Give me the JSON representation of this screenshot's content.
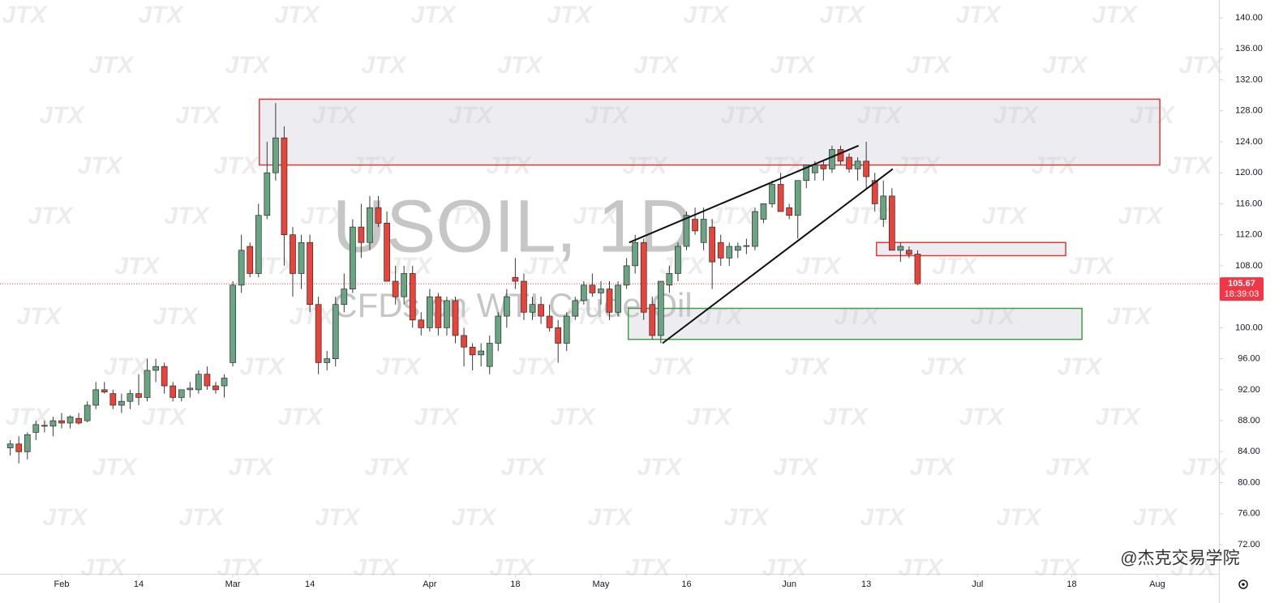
{
  "chart_data": {
    "type": "candlestick",
    "title": "USOIL, 1D",
    "subtitle": "CFDs on WTI Crude Oil",
    "watermark_text": "JTX",
    "credit": "@杰克交易学院",
    "up_color": "#6aa583",
    "down_color": "#e8443a",
    "candles": [
      [
        84.5,
        85.5,
        83.5,
        85
      ],
      [
        85,
        86,
        82.5,
        84
      ],
      [
        84,
        86.5,
        83,
        86.2
      ],
      [
        86.5,
        88,
        85.5,
        87.5
      ],
      [
        87.4,
        88,
        86.5,
        87.3
      ],
      [
        87.3,
        88.5,
        86,
        88
      ],
      [
        88,
        89,
        87,
        87.7
      ],
      [
        87.7,
        88.7,
        87,
        88.5
      ],
      [
        88.3,
        89,
        87.5,
        87.7
      ],
      [
        88,
        90.5,
        87.8,
        90
      ],
      [
        90,
        93,
        89.5,
        92
      ],
      [
        92,
        93,
        91.5,
        91.7
      ],
      [
        91.5,
        92,
        89.5,
        90
      ],
      [
        90,
        91.5,
        89,
        90.5
      ],
      [
        90.5,
        92,
        89.5,
        91.5
      ],
      [
        91.5,
        94,
        90,
        91
      ],
      [
        91,
        96,
        90.5,
        94.5
      ],
      [
        94.5,
        96,
        93,
        95
      ],
      [
        95,
        95.5,
        91.5,
        92.5
      ],
      [
        92.5,
        93,
        90.5,
        91
      ],
      [
        91,
        92,
        90.5,
        92
      ],
      [
        92,
        93,
        91,
        92.2
      ],
      [
        92,
        94.5,
        91.5,
        94
      ],
      [
        94,
        95,
        92,
        92.5
      ],
      [
        92.5,
        93,
        91.5,
        92
      ],
      [
        92.5,
        94,
        91,
        93.5
      ],
      [
        95.5,
        106,
        95,
        105.5
      ],
      [
        105.5,
        112,
        104.5,
        110
      ],
      [
        110.5,
        111,
        106.5,
        107
      ],
      [
        107,
        116,
        106.5,
        114.5
      ],
      [
        114.5,
        124,
        114,
        120
      ],
      [
        120,
        129,
        119,
        124.5
      ],
      [
        124.5,
        126,
        108,
        112
      ],
      [
        112,
        113,
        104,
        107
      ],
      [
        107,
        112,
        105,
        111
      ],
      [
        111,
        112,
        102,
        103
      ],
      [
        103,
        104,
        94,
        95.5
      ],
      [
        95.5,
        97,
        94.5,
        96
      ],
      [
        96,
        104,
        95,
        103
      ],
      [
        103,
        107,
        102,
        105
      ],
      [
        105,
        114,
        104.5,
        113
      ],
      [
        113,
        116,
        109,
        111
      ],
      [
        111,
        117,
        110,
        115.5
      ],
      [
        115.5,
        117,
        113,
        113.5
      ],
      [
        113.5,
        115,
        106,
        106
      ],
      [
        106,
        108,
        103,
        104
      ],
      [
        104,
        108,
        103,
        107
      ],
      [
        107,
        108,
        100,
        101
      ],
      [
        101,
        102,
        99,
        100
      ],
      [
        100,
        105,
        99.5,
        104
      ],
      [
        104,
        104.5,
        99,
        100
      ],
      [
        100,
        104,
        99,
        103.5
      ],
      [
        103.5,
        104,
        98,
        99
      ],
      [
        99,
        100,
        95,
        97.5
      ],
      [
        97.5,
        98,
        94.5,
        96.5
      ],
      [
        96.5,
        98,
        95,
        97
      ],
      [
        95,
        99,
        94,
        98
      ],
      [
        98,
        102,
        97,
        101.5
      ],
      [
        101.5,
        105,
        100,
        104
      ],
      [
        106.5,
        109,
        105,
        106
      ],
      [
        106,
        107,
        101,
        102
      ],
      [
        102,
        104,
        101,
        103
      ],
      [
        103,
        104,
        100.5,
        101.5
      ],
      [
        101.5,
        103,
        99.5,
        100
      ],
      [
        100,
        101,
        95.5,
        98
      ],
      [
        98,
        102,
        97,
        101.5
      ],
      [
        101.5,
        104,
        101,
        103.5
      ],
      [
        103.5,
        106,
        103,
        105.5
      ],
      [
        105.5,
        107,
        104,
        104.5
      ],
      [
        104.5,
        106,
        103,
        105
      ],
      [
        105,
        106,
        101,
        102
      ],
      [
        102,
        106,
        101.5,
        105.5
      ],
      [
        105.5,
        109,
        105,
        108
      ],
      [
        108,
        112,
        107,
        111
      ],
      [
        111,
        111.5,
        101,
        102
      ],
      [
        103,
        104,
        98.5,
        99
      ],
      [
        99,
        106,
        98,
        106
      ],
      [
        105.5,
        108,
        104.5,
        107
      ],
      [
        107,
        111,
        106,
        110.5
      ],
      [
        110.5,
        115,
        110,
        114.5
      ],
      [
        114,
        115.5,
        112,
        112.5
      ],
      [
        111,
        115.5,
        110,
        114
      ],
      [
        113,
        114,
        105,
        108.5
      ],
      [
        111,
        112,
        108,
        109
      ],
      [
        109,
        111,
        108,
        110.5
      ],
      [
        110,
        111,
        109,
        110.5
      ],
      [
        110.5,
        111.5,
        109.5,
        110.6
      ],
      [
        110.5,
        115.5,
        110,
        115
      ],
      [
        114,
        116,
        113.5,
        116
      ],
      [
        116,
        119,
        115.5,
        118.5
      ],
      [
        118.5,
        120,
        115,
        115
      ],
      [
        115.5,
        116,
        114,
        114.5
      ],
      [
        114.5,
        119,
        111.5,
        119
      ],
      [
        119,
        121,
        118,
        121
      ],
      [
        120,
        121.5,
        119,
        121
      ],
      [
        121,
        121.5,
        119,
        120.5
      ],
      [
        120.5,
        123.5,
        120,
        123
      ],
      [
        123,
        123.5,
        121,
        121.5
      ],
      [
        122,
        122.5,
        120,
        120.5
      ],
      [
        120.5,
        122,
        119,
        121.5
      ],
      [
        121.5,
        124,
        118,
        119.5
      ],
      [
        119,
        120,
        115,
        116
      ],
      [
        114,
        119,
        113,
        117
      ],
      [
        117,
        118,
        110,
        110
      ],
      [
        110,
        111,
        108.5,
        110.5
      ],
      [
        110,
        110.5,
        109,
        109.5
      ],
      [
        109.5,
        110,
        105.5,
        105.67
      ]
    ],
    "xlim": [
      -1.2,
      141.2
    ],
    "xticks": [
      {
        "value": 6,
        "label": "Feb"
      },
      {
        "value": 15,
        "label": "14"
      },
      {
        "value": 26,
        "label": "Mar"
      },
      {
        "value": 35,
        "label": "14"
      },
      {
        "value": 49,
        "label": "Apr"
      },
      {
        "value": 59,
        "label": "18"
      },
      {
        "value": 69,
        "label": "May"
      },
      {
        "value": 79,
        "label": "16"
      },
      {
        "value": 91,
        "label": "Jun"
      },
      {
        "value": 100,
        "label": "13"
      },
      {
        "value": 113,
        "label": "Jul"
      },
      {
        "value": 124,
        "label": "18"
      },
      {
        "value": 134,
        "label": "Aug"
      }
    ],
    "ylim": [
      68.24,
      142.3
    ],
    "yticks": [
      {
        "value": 72,
        "label": "72.00"
      },
      {
        "value": 76,
        "label": "76.00"
      },
      {
        "value": 80,
        "label": "80.00"
      },
      {
        "value": 84,
        "label": "84.00"
      },
      {
        "value": 88,
        "label": "88.00"
      },
      {
        "value": 92,
        "label": "92.00"
      },
      {
        "value": 96,
        "label": "96.00"
      },
      {
        "value": 100,
        "label": "100.00"
      },
      {
        "value": 104,
        "label": "104.00"
      },
      {
        "value": 108,
        "label": "108.00"
      },
      {
        "value": 112,
        "label": "112.00"
      },
      {
        "value": 116,
        "label": "116.00"
      },
      {
        "value": 120,
        "label": "120.00"
      },
      {
        "value": 124,
        "label": "124.00"
      },
      {
        "value": 128,
        "label": "128.00"
      },
      {
        "value": 132,
        "label": "132.00"
      },
      {
        "value": 136,
        "label": "136.00"
      },
      {
        "value": 140,
        "label": "140.00"
      }
    ],
    "last_price": {
      "value": 105.67,
      "label": "105.67",
      "countdown": "18:39:03",
      "color": "#f23645"
    },
    "zones": [
      {
        "x": [
          29.1,
          134.3
        ],
        "y": [
          121,
          129.5
        ],
        "color": "#e53935"
      },
      {
        "x": [
          101.2,
          123.3
        ],
        "y": [
          109.3,
          111
        ],
        "color": "#e53935"
      },
      {
        "x": [
          72.2,
          125.2
        ],
        "y": [
          98.5,
          102.5
        ],
        "color": "#43a047"
      }
    ],
    "trendlines": [
      {
        "x": [
          72.3,
          99.1
        ],
        "y": [
          111,
          123.5
        ]
      },
      {
        "x": [
          76.2,
          103.1
        ],
        "y": [
          98,
          120.5
        ]
      }
    ]
  }
}
